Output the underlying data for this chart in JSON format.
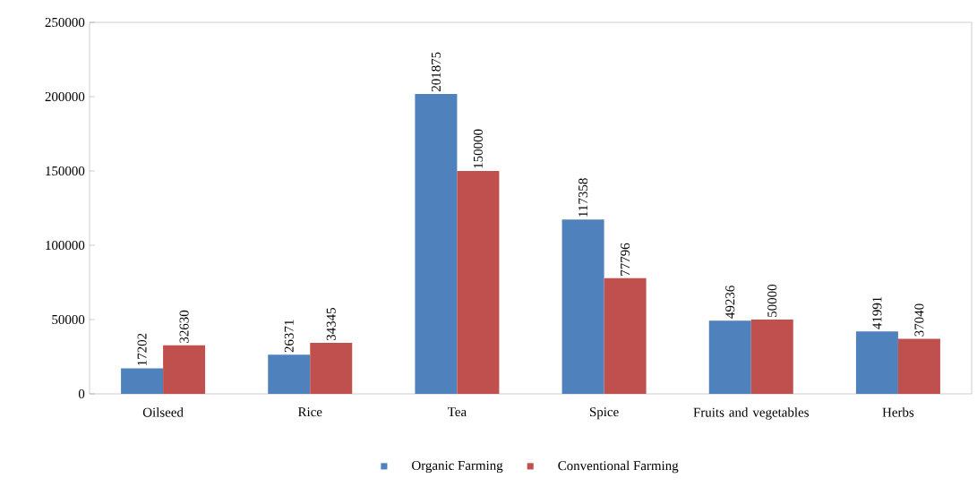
{
  "chart_data": {
    "type": "bar",
    "categories": [
      "Oilseed",
      "Rice",
      "Tea",
      "Spice",
      "Fruits and vegetables",
      "Herbs"
    ],
    "series": [
      {
        "name": "Organic Farming",
        "color": "#4f81bd",
        "values": [
          17202,
          26371,
          201875,
          117358,
          49236,
          41991
        ]
      },
      {
        "name": "Conventional Farming",
        "color": "#c0504d",
        "values": [
          32630,
          34345,
          150000,
          77796,
          50000,
          37040
        ]
      }
    ],
    "ylim": [
      0,
      250000
    ],
    "yticks": [
      0,
      50000,
      100000,
      150000,
      200000,
      250000
    ],
    "data_labels": true,
    "legend": "bottom",
    "grid": false
  }
}
